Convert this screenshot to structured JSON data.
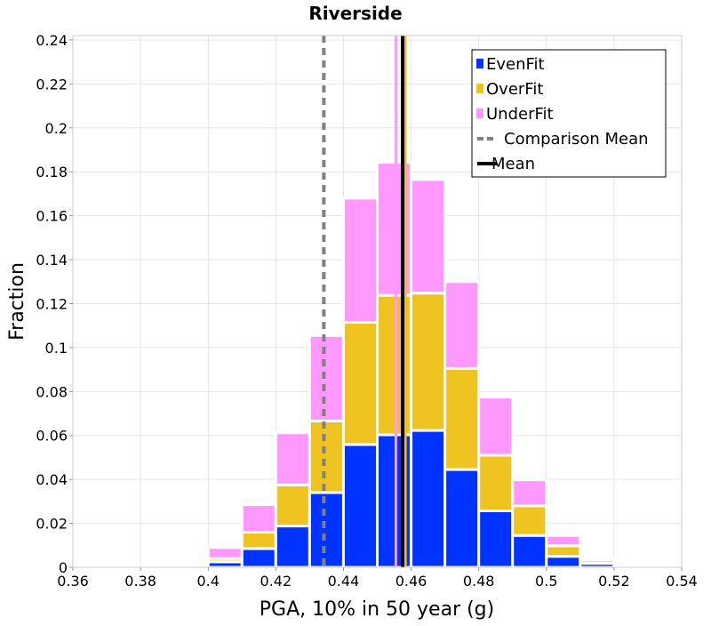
{
  "chart_data": {
    "type": "bar",
    "stacked": true,
    "title": "Riverside",
    "xlabel": "PGA, 10% in 50 year (g)",
    "ylabel": "Fraction",
    "xlim": [
      0.36,
      0.54
    ],
    "ylim": [
      0,
      0.242
    ],
    "x_ticks": [
      "0.36",
      "0.38",
      "0.4",
      "0.42",
      "0.44",
      "0.46",
      "0.48",
      "0.5",
      "0.52",
      "0.54"
    ],
    "y_ticks": [
      "0",
      "0.02",
      "0.04",
      "0.06",
      "0.08",
      "0.1",
      "0.12",
      "0.14",
      "0.16",
      "0.18",
      "0.2",
      "0.22",
      "0.24"
    ],
    "grid": true,
    "legend_position": "top-right",
    "bin_width": 0.01,
    "bin_centers": [
      0.365,
      0.375,
      0.385,
      0.395,
      0.405,
      0.415,
      0.425,
      0.435,
      0.445,
      0.455,
      0.465,
      0.475,
      0.485,
      0.495,
      0.505,
      0.515,
      0.525,
      0.535
    ],
    "series": [
      {
        "name": "EvenFit",
        "color": "#0033ff",
        "values": [
          0,
          0,
          0.0002,
          0.0005,
          0.0025,
          0.0085,
          0.0188,
          0.034,
          0.0559,
          0.0603,
          0.0623,
          0.0445,
          0.0257,
          0.0145,
          0.005,
          0.0018,
          0.0003,
          0
        ]
      },
      {
        "name": "OverFit",
        "color": "#f0c420",
        "values": [
          0,
          0,
          0.0001,
          0.0003,
          0.0015,
          0.0075,
          0.0187,
          0.0326,
          0.0556,
          0.0635,
          0.0625,
          0.046,
          0.0253,
          0.0135,
          0.0048,
          0.0015,
          0.0002,
          0
        ]
      },
      {
        "name": "UnderFit",
        "color": "#ff99ff",
        "values": [
          0,
          0,
          0.0002,
          0.0007,
          0.005,
          0.0125,
          0.0237,
          0.0389,
          0.0565,
          0.0605,
          0.0517,
          0.0395,
          0.0265,
          0.0118,
          0.0047,
          0.0012,
          0.0002,
          0
        ]
      }
    ],
    "lines": [
      {
        "name": "Comparison Mean",
        "x": 0.4342,
        "color": "#808080",
        "style": "dashed"
      },
      {
        "name": "Mean",
        "x": 0.4575,
        "color": "#000000",
        "style": "solid"
      },
      {
        "name": "OverFit mean",
        "x": 0.4583,
        "color": "#f0c420",
        "style": "solid"
      },
      {
        "name": "UnderFit mean",
        "x": 0.4555,
        "color": "#ff99ff",
        "style": "solid"
      }
    ],
    "legend": [
      {
        "label": "EvenFit",
        "type": "patch",
        "color": "#0033ff"
      },
      {
        "label": "OverFit",
        "type": "patch",
        "color": "#f0c420"
      },
      {
        "label": "UnderFit",
        "type": "patch",
        "color": "#ff99ff"
      },
      {
        "label": "Comparison Mean",
        "type": "dashed-line",
        "color": "#808080"
      },
      {
        "label": "Mean",
        "type": "solid-line",
        "color": "#000000"
      }
    ]
  }
}
